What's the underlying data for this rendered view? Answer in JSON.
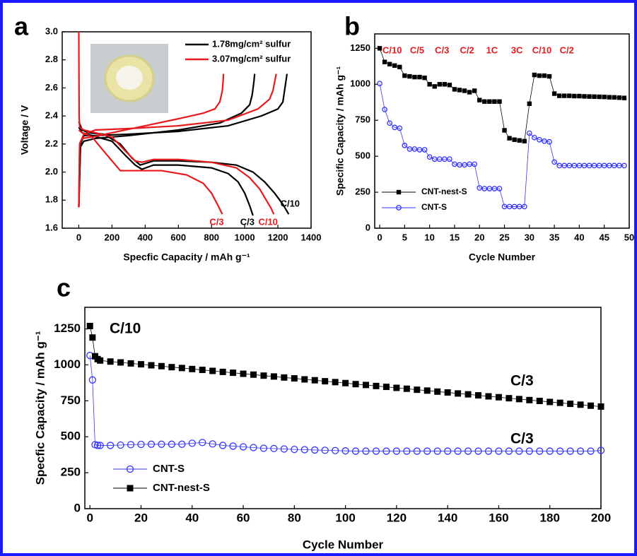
{
  "chart_data": [
    {
      "type": "line",
      "panel": "a",
      "x_label": "Specfic Capacity / mAh g⁻¹",
      "y_label": "Voltage / V",
      "xlim": [
        -100,
        1400
      ],
      "ylim": [
        1.6,
        3.0
      ],
      "xticks": [
        0,
        200,
        400,
        600,
        800,
        1000,
        1200,
        1400
      ],
      "yticks": [
        {
          "value": 1.6,
          "label": "1.6"
        },
        {
          "value": 1.8,
          "label": "1.8"
        },
        {
          "value": 2.0,
          "label": "2.0"
        },
        {
          "value": 2.2,
          "label": "2.2"
        },
        {
          "value": 2.4,
          "label": "2.4"
        },
        {
          "value": 2.6,
          "label": "2.6"
        },
        {
          "value": 2.8,
          "label": "2.8"
        },
        {
          "value": 3.0,
          "label": "3.0"
        }
      ],
      "series": [
        {
          "name": "1.78mg/cm² sulfur",
          "color": "#000000",
          "curves": [
            {
              "label": "C/10",
              "x": [
                0,
                20,
                60,
                150,
                250,
                320,
                370,
                450,
                600,
                800,
                950,
                1050,
                1120,
                1180,
                1230,
                1265
              ],
              "values": [
                2.36,
                2.3,
                2.28,
                2.27,
                2.2,
                2.1,
                2.05,
                2.08,
                2.08,
                2.07,
                2.05,
                2.0,
                1.93,
                1.85,
                1.77,
                1.7
              ]
            },
            {
              "label": "C/3",
              "x": [
                0,
                20,
                80,
                200,
                280,
                340,
                380,
                450,
                600,
                800,
                900,
                960,
                1000,
                1030,
                1050
              ],
              "values": [
                2.32,
                2.28,
                2.26,
                2.22,
                2.12,
                2.05,
                2.02,
                2.05,
                2.05,
                2.03,
                1.99,
                1.93,
                1.85,
                1.76,
                1.69
              ]
            },
            {
              "x": [
                0,
                10,
                30,
                100,
                300,
                600,
                900,
                1100,
                1200,
                1230,
                1240,
                1250,
                1255
              ],
              "values": [
                1.75,
                2.2,
                2.26,
                2.26,
                2.27,
                2.29,
                2.33,
                2.4,
                2.45,
                2.5,
                2.58,
                2.66,
                2.7
              ]
            },
            {
              "x": [
                0,
                10,
                30,
                100,
                300,
                600,
                850,
                980,
                1030,
                1045,
                1055,
                1060
              ],
              "values": [
                1.75,
                2.18,
                2.22,
                2.24,
                2.26,
                2.3,
                2.35,
                2.42,
                2.48,
                2.55,
                2.64,
                2.7
              ]
            }
          ]
        },
        {
          "name": "3.07mg/cm² sulfur",
          "color": "#e8191c",
          "curves": [
            {
              "label": "C/10",
              "x": [
                0,
                2,
                5,
                30,
                100,
                200,
                280,
                340,
                380,
                450,
                600,
                800,
                950,
                1030,
                1090,
                1130,
                1160,
                1175
              ],
              "values": [
                3.0,
                2.4,
                2.32,
                2.3,
                2.28,
                2.25,
                2.15,
                2.08,
                2.07,
                2.09,
                2.09,
                2.07,
                2.03,
                1.96,
                1.88,
                1.8,
                1.74,
                1.7
              ]
            },
            {
              "label": "C/3",
              "x": [
                0,
                20,
                80,
                150,
                200,
                250,
                300,
                500,
                650,
                750,
                800,
                840,
                865
              ],
              "values": [
                2.3,
                2.28,
                2.25,
                2.15,
                2.08,
                2.01,
                2.01,
                2.01,
                1.98,
                1.92,
                1.85,
                1.76,
                1.7
              ]
            },
            {
              "x": [
                0,
                5,
                30,
                100,
                300,
                600,
                900,
                1080,
                1150,
                1170,
                1180,
                1190
              ],
              "values": [
                1.75,
                2.2,
                2.27,
                2.3,
                2.31,
                2.33,
                2.37,
                2.45,
                2.52,
                2.58,
                2.64,
                2.7
              ]
            },
            {
              "x": [
                0,
                5,
                20,
                80,
                200,
                400,
                600,
                750,
                820,
                850,
                865,
                870,
                872
              ],
              "values": [
                1.75,
                2.2,
                2.24,
                2.25,
                2.28,
                2.33,
                2.38,
                2.42,
                2.45,
                2.5,
                2.58,
                2.65,
                2.7
              ]
            }
          ]
        }
      ]
    },
    {
      "type": "scatter",
      "panel": "b",
      "x_label": "Cycle Number",
      "y_label": "Specific Capacity / mAh g⁻¹",
      "xlim": [
        -1,
        50
      ],
      "ylim": [
        0,
        1350
      ],
      "xticks": [
        0,
        5,
        10,
        15,
        20,
        25,
        30,
        35,
        40,
        45,
        50
      ],
      "yticks": [
        0,
        250,
        500,
        750,
        1000,
        1250
      ],
      "annotations": [
        "C/10",
        "C/5",
        "C/3",
        "C/2",
        "1C",
        "3C",
        "C/10",
        "C/2"
      ],
      "annotation_color": "#e8191c",
      "series": [
        {
          "name": "CNT-nest-S",
          "color": "#000000",
          "marker": "square",
          "x": [
            0,
            1,
            2,
            3,
            4,
            5,
            6,
            7,
            8,
            9,
            10,
            11,
            12,
            13,
            14,
            15,
            16,
            17,
            18,
            19,
            20,
            21,
            22,
            23,
            24,
            25,
            26,
            27,
            28,
            29,
            30,
            31,
            32,
            33,
            34,
            35,
            36,
            37,
            38,
            39,
            40,
            41,
            42,
            43,
            44,
            45,
            46,
            47,
            48,
            49
          ],
          "values": [
            1250,
            1155,
            1140,
            1130,
            1120,
            1060,
            1055,
            1050,
            1050,
            1045,
            1000,
            985,
            1000,
            1000,
            995,
            965,
            960,
            955,
            945,
            955,
            890,
            880,
            880,
            880,
            880,
            680,
            625,
            615,
            610,
            605,
            865,
            1065,
            1060,
            1060,
            1055,
            935,
            920,
            920,
            920,
            918,
            918,
            916,
            915,
            914,
            913,
            912,
            910,
            909,
            907,
            905
          ]
        },
        {
          "name": "CNT-S",
          "color": "#3333ff",
          "marker": "circle",
          "x": [
            0,
            1,
            2,
            3,
            4,
            5,
            6,
            7,
            8,
            9,
            10,
            11,
            12,
            13,
            14,
            15,
            16,
            17,
            18,
            19,
            20,
            21,
            22,
            23,
            24,
            25,
            26,
            27,
            28,
            29,
            30,
            31,
            32,
            33,
            34,
            35,
            36,
            37,
            38,
            39,
            40,
            41,
            42,
            43,
            44,
            45,
            46,
            47,
            48,
            49
          ],
          "values": [
            1005,
            825,
            730,
            700,
            695,
            575,
            550,
            550,
            545,
            545,
            495,
            480,
            480,
            480,
            480,
            445,
            440,
            440,
            445,
            445,
            280,
            275,
            275,
            275,
            275,
            150,
            150,
            150,
            150,
            150,
            660,
            630,
            615,
            605,
            600,
            460,
            435,
            435,
            435,
            435,
            435,
            435,
            435,
            435,
            435,
            435,
            435,
            435,
            435,
            435
          ]
        }
      ]
    },
    {
      "type": "scatter",
      "panel": "c",
      "x_label": "Cycle Number",
      "y_label": "Specfic Capacity / mAh g⁻¹",
      "xlim": [
        -2,
        200
      ],
      "ylim": [
        0,
        1400
      ],
      "xticks": [
        0,
        20,
        40,
        60,
        80,
        100,
        120,
        140,
        160,
        180,
        200
      ],
      "yticks": [
        0,
        250,
        500,
        750,
        1000,
        1250
      ],
      "annotations": [
        "C/10",
        "C/3",
        "C/3"
      ],
      "annotation_color": "#000000",
      "series": [
        {
          "name": "CNT-S",
          "color": "#3333ff",
          "marker": "circle",
          "x": [
            0,
            1,
            2,
            3,
            4,
            8,
            12,
            16,
            20,
            24,
            28,
            32,
            36,
            40,
            44,
            48,
            52,
            56,
            60,
            64,
            68,
            72,
            76,
            80,
            84,
            88,
            92,
            96,
            100,
            104,
            108,
            112,
            116,
            120,
            124,
            128,
            132,
            136,
            140,
            144,
            148,
            152,
            156,
            160,
            164,
            168,
            172,
            176,
            180,
            184,
            188,
            192,
            196,
            200
          ],
          "values": [
            1065,
            895,
            445,
            440,
            440,
            440,
            442,
            445,
            447,
            448,
            448,
            448,
            448,
            455,
            460,
            450,
            440,
            435,
            430,
            425,
            420,
            418,
            415,
            412,
            410,
            408,
            406,
            404,
            402,
            400,
            400,
            400,
            400,
            400,
            400,
            400,
            400,
            400,
            400,
            400,
            400,
            400,
            400,
            400,
            400,
            400,
            400,
            400,
            400,
            400,
            400,
            400,
            400,
            405
          ]
        },
        {
          "name": "CNT-nest-S",
          "color": "#000000",
          "marker": "square",
          "x": [
            0,
            1,
            2,
            3,
            4,
            8,
            12,
            16,
            20,
            24,
            28,
            32,
            36,
            40,
            44,
            48,
            52,
            56,
            60,
            64,
            68,
            72,
            76,
            80,
            84,
            88,
            92,
            96,
            100,
            104,
            108,
            112,
            116,
            120,
            124,
            128,
            132,
            136,
            140,
            144,
            148,
            152,
            156,
            160,
            164,
            168,
            172,
            176,
            180,
            184,
            188,
            192,
            196,
            200
          ],
          "values": [
            1270,
            1190,
            1060,
            1040,
            1030,
            1023,
            1017,
            1010,
            1004,
            997,
            991,
            984,
            978,
            971,
            965,
            958,
            951,
            945,
            938,
            932,
            925,
            919,
            912,
            906,
            899,
            893,
            886,
            880,
            873,
            866,
            860,
            853,
            847,
            840,
            834,
            827,
            821,
            814,
            808,
            801,
            795,
            788,
            781,
            775,
            768,
            762,
            755,
            749,
            742,
            736,
            729,
            723,
            716,
            710
          ]
        }
      ]
    }
  ]
}
